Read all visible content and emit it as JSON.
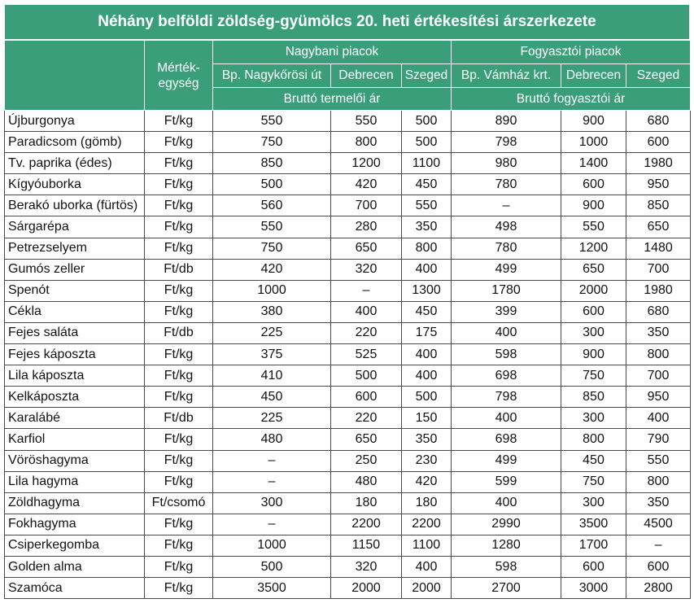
{
  "title": "Néhány belföldi zöldség-gyümölcs 20. heti értékesítési árszerkezete",
  "header": {
    "unit_label": "Mérték-\negység",
    "wholesale_group": "Nagybani piacok",
    "retail_group": "Fogyasztói piacok",
    "wholesale_markets": [
      "Bp. Nagykőrösi út",
      "Debrecen",
      "Szeged"
    ],
    "retail_markets": [
      "Bp. Vámház krt.",
      "Debrecen",
      "Szeged"
    ],
    "wholesale_price_type": "Bruttó termelői ár",
    "retail_price_type": "Bruttó fogyasztói ár"
  },
  "rows": [
    {
      "name": "Újburgonya",
      "unit": "Ft/kg",
      "values": [
        "550",
        "550",
        "500",
        "890",
        "900",
        "680"
      ]
    },
    {
      "name": "Paradicsom (gömb)",
      "unit": "Ft/kg",
      "values": [
        "750",
        "800",
        "500",
        "798",
        "1000",
        "600"
      ]
    },
    {
      "name": "Tv. paprika (édes)",
      "unit": "Ft/kg",
      "values": [
        "850",
        "1200",
        "1100",
        "980",
        "1400",
        "1980"
      ]
    },
    {
      "name": "Kígyóuborka",
      "unit": "Ft/kg",
      "values": [
        "500",
        "420",
        "450",
        "780",
        "600",
        "950"
      ]
    },
    {
      "name": "Berakó uborka (fürtös)",
      "unit": "Ft/kg",
      "values": [
        "560",
        "700",
        "550",
        "–",
        "900",
        "850"
      ]
    },
    {
      "name": "Sárgarépa",
      "unit": "Ft/kg",
      "values": [
        "550",
        "280",
        "350",
        "498",
        "550",
        "650"
      ]
    },
    {
      "name": "Petrezselyem",
      "unit": "Ft/kg",
      "values": [
        "750",
        "650",
        "800",
        "780",
        "1200",
        "1480"
      ]
    },
    {
      "name": "Gumós zeller",
      "unit": "Ft/db",
      "values": [
        "420",
        "320",
        "400",
        "499",
        "650",
        "700"
      ]
    },
    {
      "name": "Spenót",
      "unit": "Ft/kg",
      "values": [
        "1000",
        "–",
        "1300",
        "1780",
        "2000",
        "1980"
      ]
    },
    {
      "name": "Cékla",
      "unit": "Ft/kg",
      "values": [
        "380",
        "400",
        "450",
        "399",
        "600",
        "680"
      ]
    },
    {
      "name": "Fejes saláta",
      "unit": "Ft/db",
      "values": [
        "225",
        "220",
        "175",
        "400",
        "300",
        "350"
      ]
    },
    {
      "name": "Fejes káposzta",
      "unit": "Ft/kg",
      "values": [
        "375",
        "525",
        "400",
        "598",
        "900",
        "800"
      ]
    },
    {
      "name": "Lila káposzta",
      "unit": "Ft/kg",
      "values": [
        "410",
        "500",
        "400",
        "698",
        "750",
        "700"
      ]
    },
    {
      "name": "Kelkáposzta",
      "unit": "Ft/kg",
      "values": [
        "450",
        "600",
        "500",
        "798",
        "850",
        "950"
      ]
    },
    {
      "name": "Karalábé",
      "unit": "Ft/db",
      "values": [
        "225",
        "220",
        "150",
        "400",
        "300",
        "400"
      ]
    },
    {
      "name": "Karfiol",
      "unit": "Ft/kg",
      "values": [
        "480",
        "650",
        "350",
        "698",
        "800",
        "790"
      ]
    },
    {
      "name": "Vöröshagyma",
      "unit": "Ft/kg",
      "values": [
        "–",
        "250",
        "230",
        "499",
        "450",
        "550"
      ]
    },
    {
      "name": "Lila hagyma",
      "unit": "Ft/kg",
      "values": [
        "–",
        "480",
        "420",
        "599",
        "750",
        "800"
      ]
    },
    {
      "name": "Zöldhagyma",
      "unit": "Ft/csomó",
      "values": [
        "300",
        "180",
        "180",
        "400",
        "300",
        "350"
      ]
    },
    {
      "name": "Fokhagyma",
      "unit": "Ft/kg",
      "values": [
        "–",
        "2200",
        "2200",
        "2990",
        "3500",
        "4500"
      ]
    },
    {
      "name": "Csiperkegomba",
      "unit": "Ft/kg",
      "values": [
        "1000",
        "1150",
        "1100",
        "1280",
        "1700",
        "–"
      ]
    },
    {
      "name": "Golden alma",
      "unit": "Ft/kg",
      "values": [
        "500",
        "320",
        "400",
        "598",
        "600",
        "600"
      ]
    },
    {
      "name": "Szamóca",
      "unit": "Ft/kg",
      "values": [
        "3500",
        "2000",
        "2000",
        "2700",
        "3000",
        "2800"
      ]
    }
  ],
  "colors": {
    "header_bg": "#3a9e7b",
    "header_text": "#ffffff"
  }
}
